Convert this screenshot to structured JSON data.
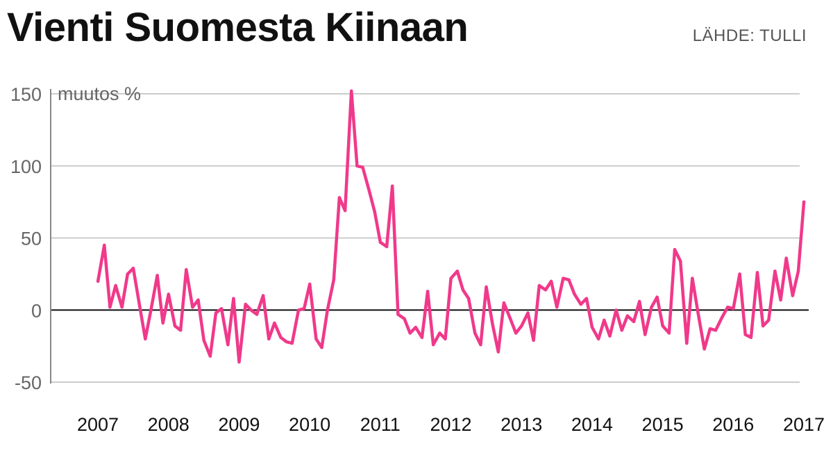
{
  "title": "Vienti Suomesta Kiinaan",
  "source": "LÄHDE: TULLI",
  "colors": {
    "line": "#f0398a",
    "grid": "#cccccc",
    "zero": "#111111",
    "axis": "#888888"
  },
  "chart_data": {
    "type": "line",
    "title": "Vienti Suomesta Kiinaan",
    "ylabel": "muutos %",
    "xlabel": "",
    "ylim": [
      -50,
      150
    ],
    "yticks": [
      150,
      100,
      50,
      0,
      -50
    ],
    "yticks_labels": [
      "150",
      "100",
      "50",
      "0",
      "-50"
    ],
    "xlim": [
      2007,
      2017
    ],
    "xticks": [
      2007,
      2008,
      2009,
      2010,
      2011,
      2012,
      2013,
      2014,
      2015,
      2016,
      2017
    ],
    "xticks_labels": [
      "2007",
      "2008",
      "2009",
      "2010",
      "2011",
      "2012",
      "2013",
      "2014",
      "2015",
      "2016",
      "2017"
    ],
    "grid": true,
    "series": [
      {
        "values": [
          {
            "x": 2007.08,
            "y": 20
          },
          {
            "x": 2007.17,
            "y": 45
          },
          {
            "x": 2007.25,
            "y": 2
          },
          {
            "x": 2007.33,
            "y": 17
          },
          {
            "x": 2007.42,
            "y": 2
          },
          {
            "x": 2007.5,
            "y": 25
          },
          {
            "x": 2007.58,
            "y": 29
          },
          {
            "x": 2007.67,
            "y": 3
          },
          {
            "x": 2007.75,
            "y": -20
          },
          {
            "x": 2007.83,
            "y": 0
          },
          {
            "x": 2007.92,
            "y": 24
          },
          {
            "x": 2008.0,
            "y": -9
          },
          {
            "x": 2008.08,
            "y": 11
          },
          {
            "x": 2008.17,
            "y": -11
          },
          {
            "x": 2008.25,
            "y": -14
          },
          {
            "x": 2008.33,
            "y": 28
          },
          {
            "x": 2008.42,
            "y": 2
          },
          {
            "x": 2008.5,
            "y": 7
          },
          {
            "x": 2008.58,
            "y": -21
          },
          {
            "x": 2008.67,
            "y": -32
          },
          {
            "x": 2008.75,
            "y": -2
          },
          {
            "x": 2008.83,
            "y": 1
          },
          {
            "x": 2008.92,
            "y": -24
          },
          {
            "x": 2009.0,
            "y": 8
          },
          {
            "x": 2009.08,
            "y": -36
          },
          {
            "x": 2009.17,
            "y": 4
          },
          {
            "x": 2009.25,
            "y": 0
          },
          {
            "x": 2009.33,
            "y": -3
          },
          {
            "x": 2009.42,
            "y": 10
          },
          {
            "x": 2009.5,
            "y": -20
          },
          {
            "x": 2009.58,
            "y": -9
          },
          {
            "x": 2009.67,
            "y": -19
          },
          {
            "x": 2009.75,
            "y": -22
          },
          {
            "x": 2009.83,
            "y": -23
          },
          {
            "x": 2009.92,
            "y": 0
          },
          {
            "x": 2010.0,
            "y": 1
          },
          {
            "x": 2010.08,
            "y": 18
          },
          {
            "x": 2010.17,
            "y": -20
          },
          {
            "x": 2010.25,
            "y": -26
          },
          {
            "x": 2010.33,
            "y": 0
          },
          {
            "x": 2010.42,
            "y": 21
          },
          {
            "x": 2010.5,
            "y": 78
          },
          {
            "x": 2010.58,
            "y": 69
          },
          {
            "x": 2010.67,
            "y": 152
          },
          {
            "x": 2010.75,
            "y": 100
          },
          {
            "x": 2010.83,
            "y": 99
          },
          {
            "x": 2010.92,
            "y": 83
          },
          {
            "x": 2011.0,
            "y": 68
          },
          {
            "x": 2011.08,
            "y": 47
          },
          {
            "x": 2011.17,
            "y": 44
          },
          {
            "x": 2011.25,
            "y": 86
          },
          {
            "x": 2011.33,
            "y": -3
          },
          {
            "x": 2011.42,
            "y": -6
          },
          {
            "x": 2011.5,
            "y": -16
          },
          {
            "x": 2011.58,
            "y": -12
          },
          {
            "x": 2011.67,
            "y": -19
          },
          {
            "x": 2011.75,
            "y": 13
          },
          {
            "x": 2011.83,
            "y": -24
          },
          {
            "x": 2011.92,
            "y": -16
          },
          {
            "x": 2012.0,
            "y": -20
          },
          {
            "x": 2012.08,
            "y": 22
          },
          {
            "x": 2012.17,
            "y": 27
          },
          {
            "x": 2012.25,
            "y": 14
          },
          {
            "x": 2012.33,
            "y": 8
          },
          {
            "x": 2012.42,
            "y": -16
          },
          {
            "x": 2012.5,
            "y": -24
          },
          {
            "x": 2012.58,
            "y": 16
          },
          {
            "x": 2012.67,
            "y": -10
          },
          {
            "x": 2012.75,
            "y": -29
          },
          {
            "x": 2012.83,
            "y": 5
          },
          {
            "x": 2012.92,
            "y": -6
          },
          {
            "x": 2013.0,
            "y": -16
          },
          {
            "x": 2013.08,
            "y": -11
          },
          {
            "x": 2013.17,
            "y": -2
          },
          {
            "x": 2013.25,
            "y": -21
          },
          {
            "x": 2013.33,
            "y": 17
          },
          {
            "x": 2013.42,
            "y": 14
          },
          {
            "x": 2013.5,
            "y": 20
          },
          {
            "x": 2013.58,
            "y": 2
          },
          {
            "x": 2013.67,
            "y": 22
          },
          {
            "x": 2013.75,
            "y": 21
          },
          {
            "x": 2013.83,
            "y": 11
          },
          {
            "x": 2013.92,
            "y": 4
          },
          {
            "x": 2014.0,
            "y": 8
          },
          {
            "x": 2014.08,
            "y": -12
          },
          {
            "x": 2014.17,
            "y": -20
          },
          {
            "x": 2014.25,
            "y": -7
          },
          {
            "x": 2014.33,
            "y": -18
          },
          {
            "x": 2014.42,
            "y": 0
          },
          {
            "x": 2014.5,
            "y": -14
          },
          {
            "x": 2014.58,
            "y": -4
          },
          {
            "x": 2014.67,
            "y": -8
          },
          {
            "x": 2014.75,
            "y": 6
          },
          {
            "x": 2014.83,
            "y": -17
          },
          {
            "x": 2014.92,
            "y": 2
          },
          {
            "x": 2015.0,
            "y": 9
          },
          {
            "x": 2015.08,
            "y": -11
          },
          {
            "x": 2015.17,
            "y": -16
          },
          {
            "x": 2015.25,
            "y": 42
          },
          {
            "x": 2015.33,
            "y": 34
          },
          {
            "x": 2015.42,
            "y": -23
          },
          {
            "x": 2015.5,
            "y": 22
          },
          {
            "x": 2015.58,
            "y": -2
          },
          {
            "x": 2015.67,
            "y": -27
          },
          {
            "x": 2015.75,
            "y": -13
          },
          {
            "x": 2015.83,
            "y": -14
          },
          {
            "x": 2015.92,
            "y": -5
          },
          {
            "x": 2016.0,
            "y": 2
          },
          {
            "x": 2016.08,
            "y": 1
          },
          {
            "x": 2016.17,
            "y": 25
          },
          {
            "x": 2016.25,
            "y": -17
          },
          {
            "x": 2016.33,
            "y": -19
          },
          {
            "x": 2016.42,
            "y": 26
          },
          {
            "x": 2016.5,
            "y": -11
          },
          {
            "x": 2016.58,
            "y": -7
          },
          {
            "x": 2016.67,
            "y": 27
          },
          {
            "x": 2016.75,
            "y": 7
          },
          {
            "x": 2016.83,
            "y": 36
          },
          {
            "x": 2016.92,
            "y": 10
          },
          {
            "x": 2017.0,
            "y": 27
          },
          {
            "x": 2017.08,
            "y": 75
          }
        ]
      }
    ]
  }
}
